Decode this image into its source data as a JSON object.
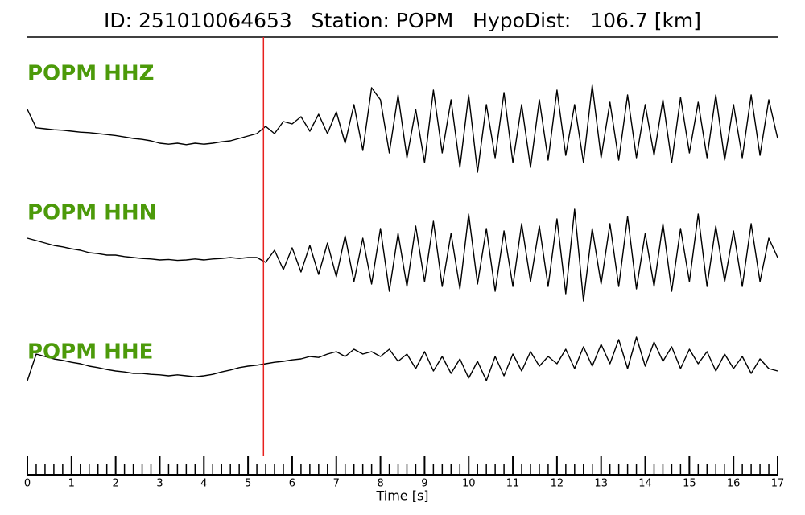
{
  "chart_data": {
    "type": "seismogram",
    "title": "ID: 251010064653   Station: POPM   HypoDist:   106.7 [km]",
    "xlabel": "Time [s]",
    "xlim": [
      0,
      17
    ],
    "xticks": [
      0,
      1,
      2,
      3,
      4,
      5,
      6,
      7,
      8,
      9,
      10,
      11,
      12,
      13,
      14,
      15,
      16,
      17
    ],
    "ylim": [
      -1,
      1
    ],
    "pick_time": 5.35,
    "pick_color": "#e8201e",
    "label_color": "#4c9a0a",
    "x": [
      0,
      0.2,
      0.4,
      0.6,
      0.8,
      1,
      1.2,
      1.4,
      1.6,
      1.8,
      2,
      2.2,
      2.4,
      2.6,
      2.8,
      3,
      3.2,
      3.4,
      3.6,
      3.8,
      4,
      4.2,
      4.4,
      4.6,
      4.8,
      5,
      5.2,
      5.4,
      5.6,
      5.8,
      6,
      6.2,
      6.4,
      6.6,
      6.8,
      7,
      7.2,
      7.4,
      7.6,
      7.8,
      8,
      8.2,
      8.4,
      8.6,
      8.8,
      9,
      9.2,
      9.4,
      9.6,
      9.8,
      10,
      10.2,
      10.4,
      10.6,
      10.8,
      11,
      11.2,
      11.4,
      11.6,
      11.8,
      12,
      12.2,
      12.4,
      12.6,
      12.8,
      13,
      13.2,
      13.4,
      13.6,
      13.8,
      14,
      14.2,
      14.4,
      14.6,
      14.8,
      15,
      15.2,
      15.4,
      15.6,
      15.8,
      16,
      16.2,
      16.4,
      16.6,
      16.8,
      17
    ],
    "series": [
      {
        "name": "POPM HHZ",
        "color": "#000000",
        "values": [
          0.4,
          0.02,
          0.0,
          -0.02,
          -0.03,
          -0.05,
          -0.07,
          -0.08,
          -0.1,
          -0.12,
          -0.14,
          -0.17,
          -0.2,
          -0.22,
          -0.25,
          -0.3,
          -0.32,
          -0.3,
          -0.33,
          -0.3,
          -0.32,
          -0.3,
          -0.27,
          -0.25,
          -0.2,
          -0.15,
          -0.1,
          0.05,
          -0.1,
          0.15,
          0.1,
          0.25,
          -0.05,
          0.3,
          -0.1,
          0.35,
          -0.3,
          0.5,
          -0.45,
          0.85,
          0.6,
          -0.5,
          0.7,
          -0.6,
          0.4,
          -0.7,
          0.8,
          -0.5,
          0.6,
          -0.8,
          0.7,
          -0.9,
          0.5,
          -0.6,
          0.75,
          -0.7,
          0.5,
          -0.8,
          0.6,
          -0.65,
          0.8,
          -0.55,
          0.5,
          -0.7,
          0.9,
          -0.6,
          0.55,
          -0.65,
          0.7,
          -0.6,
          0.5,
          -0.55,
          0.6,
          -0.7,
          0.65,
          -0.5,
          0.55,
          -0.6,
          0.7,
          -0.65,
          0.5,
          -0.6,
          0.7,
          -0.55,
          0.6,
          -0.2
        ]
      },
      {
        "name": "POPM HHN",
        "color": "#000000",
        "values": [
          0.4,
          0.35,
          0.3,
          0.25,
          0.22,
          0.18,
          0.15,
          0.1,
          0.08,
          0.05,
          0.05,
          0.02,
          0.0,
          -0.02,
          -0.03,
          -0.05,
          -0.04,
          -0.06,
          -0.05,
          -0.03,
          -0.05,
          -0.03,
          -0.02,
          0.0,
          -0.02,
          0.0,
          0.0,
          -0.1,
          0.15,
          -0.25,
          0.2,
          -0.3,
          0.25,
          -0.35,
          0.3,
          -0.4,
          0.45,
          -0.5,
          0.4,
          -0.55,
          0.6,
          -0.7,
          0.5,
          -0.6,
          0.65,
          -0.5,
          0.75,
          -0.6,
          0.5,
          -0.65,
          0.9,
          -0.55,
          0.6,
          -0.7,
          0.55,
          -0.6,
          0.7,
          -0.5,
          0.65,
          -0.6,
          0.8,
          -0.75,
          1.0,
          -0.9,
          0.6,
          -0.55,
          0.7,
          -0.6,
          0.85,
          -0.65,
          0.5,
          -0.6,
          0.7,
          -0.7,
          0.6,
          -0.5,
          0.9,
          -0.6,
          0.65,
          -0.5,
          0.55,
          -0.6,
          0.7,
          -0.5,
          0.4,
          0.0
        ]
      },
      {
        "name": "POPM HHE",
        "color": "#000000",
        "values": [
          -0.3,
          0.25,
          0.2,
          0.15,
          0.12,
          0.08,
          0.05,
          0.0,
          -0.03,
          -0.07,
          -0.1,
          -0.12,
          -0.15,
          -0.15,
          -0.17,
          -0.18,
          -0.2,
          -0.18,
          -0.2,
          -0.22,
          -0.2,
          -0.17,
          -0.12,
          -0.08,
          -0.03,
          0.0,
          0.02,
          0.05,
          0.08,
          0.1,
          0.13,
          0.15,
          0.2,
          0.18,
          0.25,
          0.3,
          0.2,
          0.35,
          0.25,
          0.3,
          0.2,
          0.35,
          0.1,
          0.25,
          -0.05,
          0.3,
          -0.1,
          0.2,
          -0.15,
          0.15,
          -0.25,
          0.1,
          -0.3,
          0.2,
          -0.2,
          0.25,
          -0.1,
          0.3,
          0.0,
          0.2,
          0.05,
          0.35,
          -0.05,
          0.4,
          0.0,
          0.45,
          0.05,
          0.55,
          -0.05,
          0.6,
          0.0,
          0.5,
          0.1,
          0.4,
          -0.05,
          0.35,
          0.05,
          0.3,
          -0.1,
          0.25,
          -0.05,
          0.2,
          -0.15,
          0.15,
          -0.05,
          -0.1
        ]
      }
    ]
  }
}
